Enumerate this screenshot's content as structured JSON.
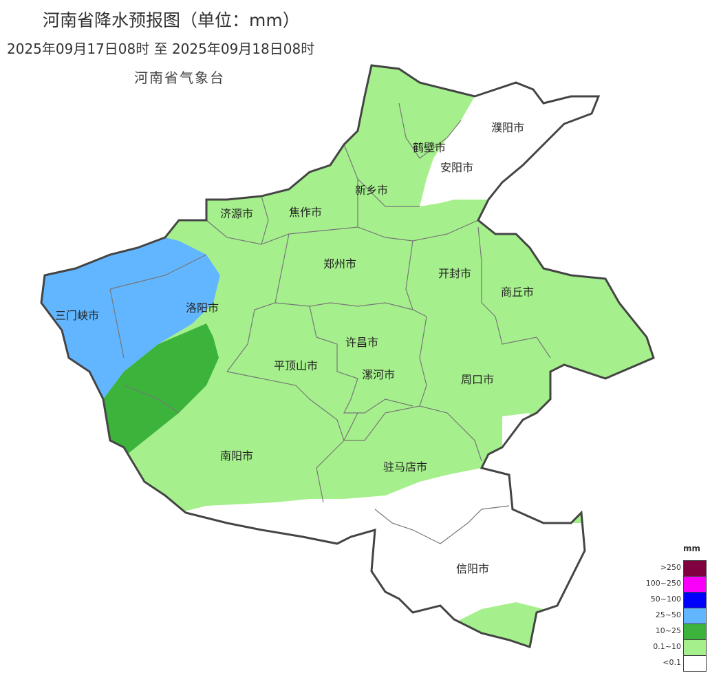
{
  "header": {
    "title": "河南省降水预报图（单位：mm）",
    "period": "2025年09月17日08时  至  2025年09月18日08时",
    "agency": "河南省气象台"
  },
  "colors": {
    "lt0_1": "#ffffff",
    "0_1_10": "#a5f08c",
    "10_25": "#3cb43c",
    "25_50": "#62b6ff",
    "50_100": "#0000fe",
    "100_250": "#fa00fa",
    "gt250": "#800040",
    "boundary": "#444444",
    "city_line": "#777777"
  },
  "cities": [
    "濮阳市",
    "鹤壁市",
    "安阳市",
    "新乡市",
    "济源市",
    "焦作市",
    "郑州市",
    "开封市",
    "商丘市",
    "三门峡市",
    "洛阳市",
    "许昌市",
    "平顶山市",
    "漯河市",
    "周口市",
    "南阳市",
    "驻马店市",
    "信阳市"
  ],
  "legend": {
    "unit": "mm",
    "items": [
      ">250",
      "100~250",
      "50~100",
      "25~50",
      "10~25",
      "0.1~10",
      "<0.1"
    ]
  }
}
